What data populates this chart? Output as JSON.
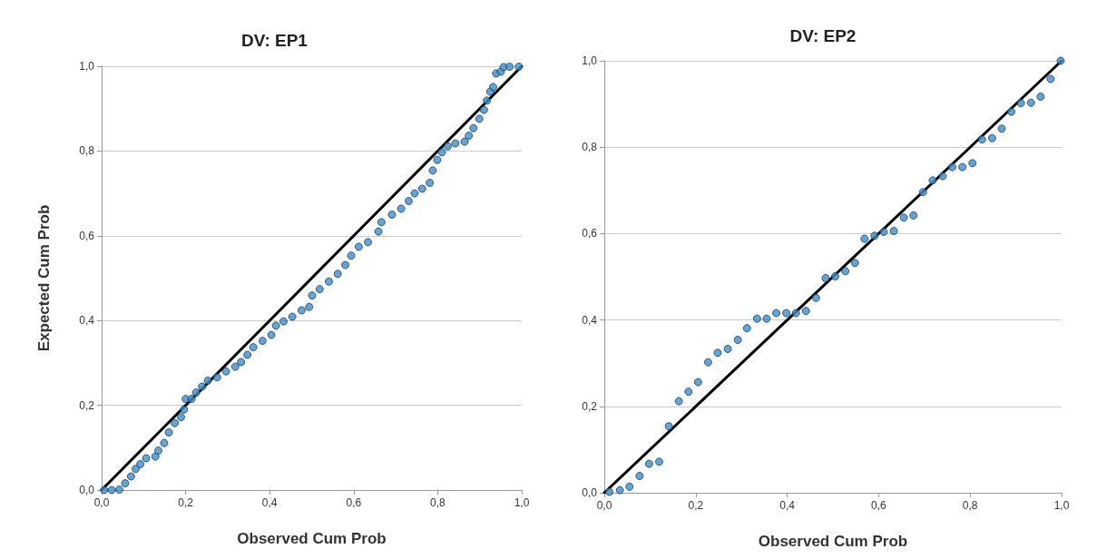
{
  "chart_data": [
    {
      "type": "scatter",
      "title": "DV: EP1",
      "xlabel": "Observed Cum Prob",
      "ylabel": "Expected Cum Prob",
      "xlim": [
        0,
        1
      ],
      "ylim": [
        0,
        1
      ],
      "xticks": [
        {
          "value": 0,
          "label": "0,0"
        },
        {
          "value": 0.2,
          "label": "0,2"
        },
        {
          "value": 0.4,
          "label": "0,4"
        },
        {
          "value": 0.6,
          "label": "0,6"
        },
        {
          "value": 0.8,
          "label": "0,8"
        },
        {
          "value": 1,
          "label": "1,0"
        }
      ],
      "yticks": [
        {
          "value": 0,
          "label": "0,0"
        },
        {
          "value": 0.2,
          "label": "0,2"
        },
        {
          "value": 0.4,
          "label": "0,4"
        },
        {
          "value": 0.6,
          "label": "0,6"
        },
        {
          "value": 0.8,
          "label": "0,8"
        },
        {
          "value": 1,
          "label": "1,0"
        }
      ],
      "grid": "y",
      "marker": "circle",
      "series": [
        {
          "color": "#3a8fd0",
          "x": [
            0.006,
            0.024,
            0.042,
            0.056,
            0.07,
            0.081,
            0.092,
            0.106,
            0.128,
            0.135,
            0.149,
            0.16,
            0.174,
            0.189,
            0.196,
            0.2,
            0.214,
            0.225,
            0.239,
            0.253,
            0.275,
            0.296,
            0.318,
            0.332,
            0.347,
            0.361,
            0.383,
            0.404,
            0.415,
            0.433,
            0.454,
            0.476,
            0.494,
            0.501,
            0.519,
            0.541,
            0.562,
            0.58,
            0.594,
            0.612,
            0.634,
            0.659,
            0.666,
            0.691,
            0.713,
            0.731,
            0.745,
            0.763,
            0.781,
            0.788,
            0.799,
            0.81,
            0.824,
            0.842,
            0.864,
            0.874,
            0.885,
            0.899,
            0.91,
            0.917,
            0.925,
            0.932,
            0.939,
            0.95,
            0.957,
            0.971,
            0.993
          ],
          "values": [
            0,
            0,
            0.001,
            0.016,
            0.032,
            0.05,
            0.061,
            0.075,
            0.079,
            0.093,
            0.111,
            0.136,
            0.158,
            0.172,
            0.19,
            0.215,
            0.215,
            0.23,
            0.244,
            0.258,
            0.266,
            0.28,
            0.291,
            0.302,
            0.319,
            0.337,
            0.352,
            0.366,
            0.388,
            0.398,
            0.409,
            0.424,
            0.432,
            0.459,
            0.474,
            0.492,
            0.51,
            0.531,
            0.553,
            0.574,
            0.585,
            0.61,
            0.632,
            0.65,
            0.664,
            0.682,
            0.7,
            0.711,
            0.725,
            0.754,
            0.779,
            0.797,
            0.811,
            0.818,
            0.822,
            0.836,
            0.854,
            0.876,
            0.897,
            0.919,
            0.94,
            0.951,
            0.983,
            0.987,
            0.998,
            0.999,
            0.999
          ]
        },
        {
          "type": "line",
          "color": "#000000",
          "marker": "none",
          "x": [
            0,
            1
          ],
          "values": [
            0,
            1
          ]
        }
      ]
    },
    {
      "type": "scatter",
      "title": "DV: EP2",
      "xlabel": "Observed Cum Prob",
      "xlim": [
        0,
        1
      ],
      "ylim": [
        0,
        1
      ],
      "xticks": [
        {
          "value": 0,
          "label": "0,0"
        },
        {
          "value": 0.2,
          "label": "0,2"
        },
        {
          "value": 0.4,
          "label": "0,4"
        },
        {
          "value": 0.6,
          "label": "0,6"
        },
        {
          "value": 0.8,
          "label": "0,8"
        },
        {
          "value": 1,
          "label": "1,0"
        }
      ],
      "yticks": [
        {
          "value": 0,
          "label": "0,0"
        },
        {
          "value": 0.2,
          "label": "0,2"
        },
        {
          "value": 0.4,
          "label": "0,4"
        },
        {
          "value": 0.6,
          "label": "0,6"
        },
        {
          "value": 0.8,
          "label": "0,8"
        },
        {
          "value": 1,
          "label": "1,0"
        }
      ],
      "grid": "y",
      "marker": "circle",
      "series": [
        {
          "color": "#3a8fd0",
          "x": [
            0.011,
            0.034,
            0.055,
            0.077,
            0.098,
            0.12,
            0.141,
            0.163,
            0.184,
            0.205,
            0.227,
            0.248,
            0.27,
            0.292,
            0.312,
            0.334,
            0.355,
            0.376,
            0.398,
            0.419,
            0.441,
            0.463,
            0.484,
            0.505,
            0.527,
            0.548,
            0.569,
            0.591,
            0.611,
            0.633,
            0.655,
            0.676,
            0.697,
            0.718,
            0.74,
            0.761,
            0.783,
            0.805,
            0.826,
            0.848,
            0.869,
            0.89,
            0.911,
            0.933,
            0.954,
            0.976,
            0.998
          ],
          "values": [
            0.002,
            0.006,
            0.014,
            0.039,
            0.067,
            0.072,
            0.154,
            0.212,
            0.234,
            0.256,
            0.302,
            0.324,
            0.333,
            0.354,
            0.381,
            0.403,
            0.403,
            0.416,
            0.416,
            0.416,
            0.421,
            0.451,
            0.497,
            0.501,
            0.513,
            0.532,
            0.588,
            0.595,
            0.604,
            0.606,
            0.637,
            0.642,
            0.696,
            0.723,
            0.733,
            0.754,
            0.754,
            0.763,
            0.818,
            0.821,
            0.843,
            0.882,
            0.902,
            0.903,
            0.917,
            0.958,
            1.0
          ]
        },
        {
          "type": "line",
          "color": "#000000",
          "marker": "none",
          "x": [
            0,
            1
          ],
          "values": [
            0,
            1
          ]
        }
      ]
    }
  ]
}
